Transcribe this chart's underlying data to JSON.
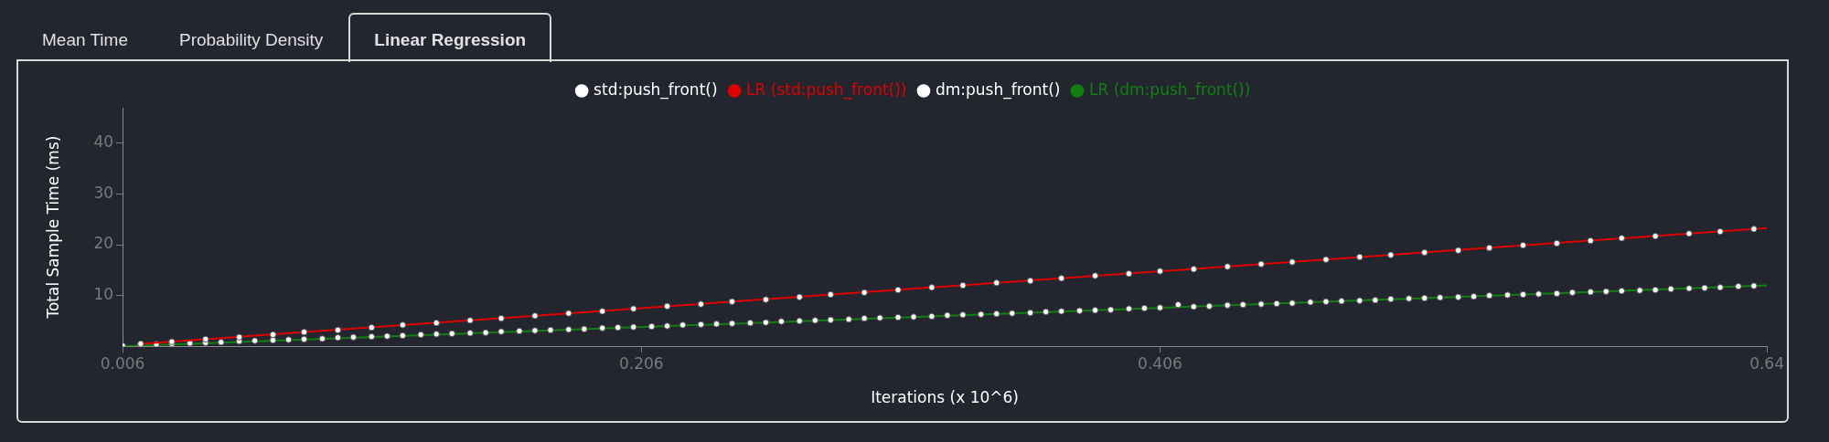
{
  "chart_data": {
    "type": "scatter",
    "xlabel": "Iterations (x 10^6)",
    "ylabel": "Total Sample Time (ms)",
    "annotations": [
      "Mean Time",
      "Probability Density",
      "Linear Regression"
    ],
    "xlim": [
      0.006,
      0.64
    ],
    "xticks": [
      0.006,
      0.206,
      0.406,
      0.64
    ],
    "ylim": [
      0,
      47
    ],
    "yticks": [
      10,
      20,
      30,
      40
    ],
    "grid": false,
    "legend": "top",
    "marker": "circle",
    "series": [
      {
        "name": "std:push_front()",
        "type": "scatter",
        "color": "#ffffff",
        "x": [
          0.013,
          0.025,
          0.038,
          0.051,
          0.064,
          0.076,
          0.089,
          0.102,
          0.114,
          0.127,
          0.14,
          0.152,
          0.165,
          0.178,
          0.191,
          0.203,
          0.216,
          0.229,
          0.241,
          0.254,
          0.267,
          0.279,
          0.292,
          0.305,
          0.318,
          0.33,
          0.343,
          0.356,
          0.368,
          0.381,
          0.394,
          0.406,
          0.419,
          0.432,
          0.445,
          0.457,
          0.47,
          0.483,
          0.495,
          0.508,
          0.521,
          0.533,
          0.546,
          0.559,
          0.572,
          0.584,
          0.597,
          0.61,
          0.622,
          0.635
        ],
        "values": [
          0.5,
          0.9,
          1.4,
          1.8,
          2.3,
          2.8,
          3.2,
          3.7,
          4.2,
          4.6,
          5.1,
          5.5,
          6.0,
          6.5,
          6.9,
          7.4,
          7.9,
          8.3,
          8.8,
          9.2,
          9.7,
          10.2,
          10.6,
          11.1,
          11.6,
          12.0,
          12.5,
          12.9,
          13.4,
          13.9,
          14.3,
          14.8,
          15.2,
          15.7,
          16.2,
          16.6,
          17.1,
          17.6,
          18.0,
          18.5,
          18.9,
          19.4,
          19.9,
          20.3,
          20.8,
          21.3,
          21.7,
          22.2,
          22.6,
          23.1
        ]
      },
      {
        "name": "LR (std:push_front())",
        "type": "line",
        "color": "#e00000",
        "marker": "none",
        "x": [
          0.013,
          0.64
        ],
        "values": [
          0.5,
          23.3
        ]
      },
      {
        "name": "dm:push_front()",
        "type": "scatter",
        "color": "#ffffff",
        "x": [
          0.006,
          0.013,
          0.019,
          0.025,
          0.032,
          0.038,
          0.044,
          0.051,
          0.057,
          0.064,
          0.07,
          0.076,
          0.083,
          0.089,
          0.095,
          0.102,
          0.108,
          0.114,
          0.121,
          0.127,
          0.133,
          0.14,
          0.146,
          0.152,
          0.159,
          0.165,
          0.171,
          0.178,
          0.184,
          0.191,
          0.197,
          0.203,
          0.21,
          0.216,
          0.222,
          0.229,
          0.235,
          0.241,
          0.248,
          0.254,
          0.26,
          0.267,
          0.273,
          0.279,
          0.286,
          0.292,
          0.298,
          0.305,
          0.311,
          0.318,
          0.324,
          0.33,
          0.337,
          0.343,
          0.349,
          0.356,
          0.362,
          0.368,
          0.375,
          0.381,
          0.387,
          0.394,
          0.4,
          0.406,
          0.413,
          0.419,
          0.425,
          0.432,
          0.438,
          0.445,
          0.451,
          0.457,
          0.464,
          0.47,
          0.476,
          0.483,
          0.489,
          0.495,
          0.502,
          0.508,
          0.514,
          0.521,
          0.527,
          0.533,
          0.54,
          0.546,
          0.552,
          0.559,
          0.565,
          0.572,
          0.578,
          0.584,
          0.591,
          0.597,
          0.603,
          0.61,
          0.616,
          0.622,
          0.629,
          0.635
        ],
        "values": [
          0.1,
          0.2,
          0.4,
          0.5,
          0.6,
          0.7,
          0.8,
          1.0,
          1.1,
          1.2,
          1.3,
          1.4,
          1.5,
          1.7,
          1.8,
          1.9,
          2.0,
          2.1,
          2.3,
          2.4,
          2.5,
          2.6,
          2.7,
          2.9,
          3.0,
          3.1,
          3.2,
          3.3,
          3.4,
          3.6,
          3.7,
          3.8,
          3.9,
          4.0,
          4.2,
          4.3,
          4.4,
          4.5,
          4.6,
          4.7,
          4.9,
          5.0,
          5.1,
          5.2,
          5.3,
          5.5,
          5.6,
          5.7,
          5.8,
          5.9,
          6.1,
          6.2,
          6.3,
          6.4,
          6.5,
          6.6,
          6.8,
          6.9,
          7.0,
          7.1,
          7.2,
          7.4,
          7.5,
          7.6,
          8.2,
          7.8,
          7.9,
          8.1,
          8.2,
          8.3,
          8.4,
          8.5,
          8.7,
          8.8,
          8.9,
          9.0,
          9.1,
          9.3,
          9.4,
          9.5,
          9.6,
          9.7,
          9.8,
          10.0,
          10.1,
          10.2,
          10.3,
          10.4,
          10.6,
          10.7,
          10.8,
          10.9,
          11.0,
          11.1,
          11.3,
          11.4,
          11.5,
          11.6,
          11.8,
          11.9
        ]
      },
      {
        "name": "LR (dm:push_front())",
        "type": "line",
        "color": "#108010",
        "marker": "none",
        "x": [
          0.006,
          0.64
        ],
        "values": [
          0.0,
          12.0
        ]
      }
    ]
  }
}
